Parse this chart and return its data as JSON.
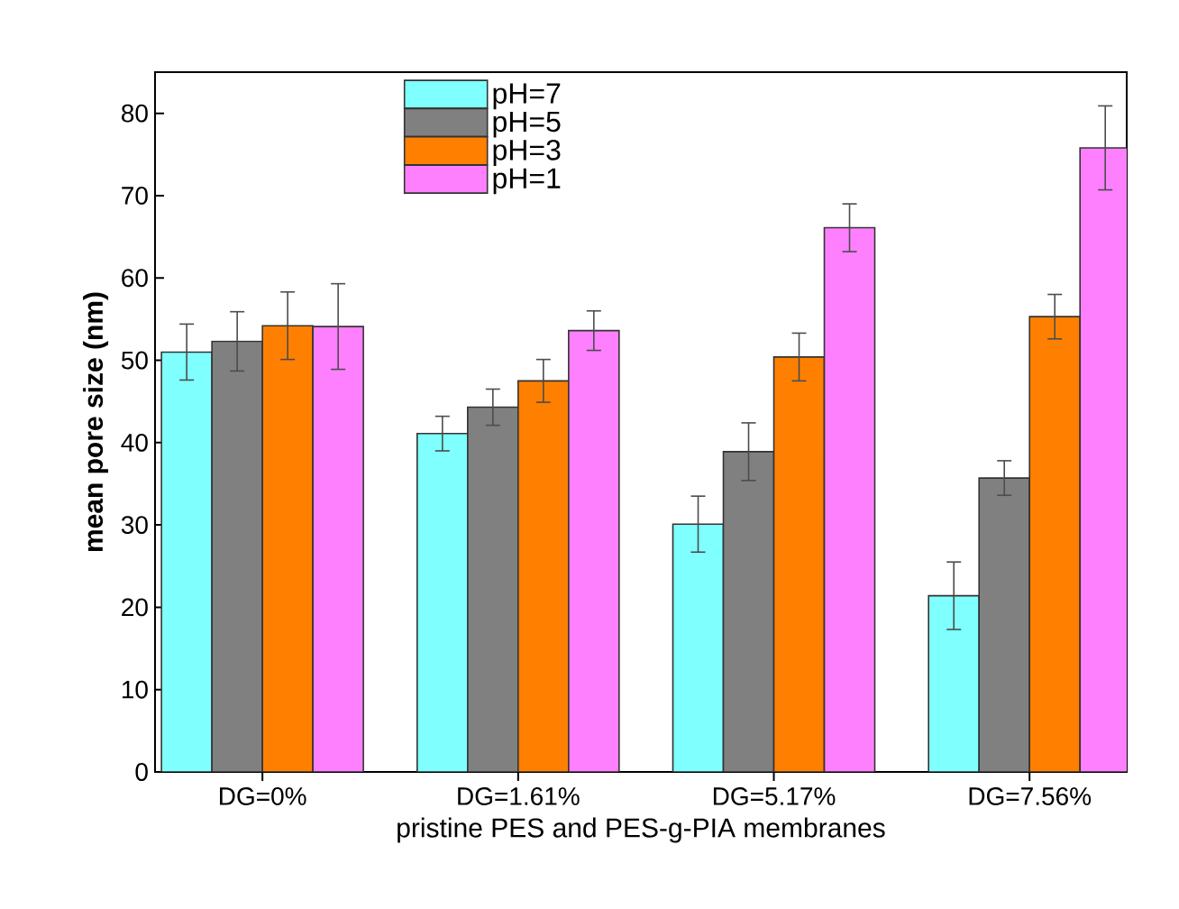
{
  "chart_data": {
    "type": "bar",
    "xlabel": "pristine PES and PES-g-PIA membranes",
    "ylabel": "mean pore size (nm)",
    "categories": [
      "DG=0%",
      "DG=1.61%",
      "DG=5.17%",
      "DG=7.56%"
    ],
    "series": [
      {
        "name": "pH=7",
        "color": "#80ffff",
        "values": [
          51.0,
          41.1,
          30.1,
          21.4
        ],
        "errors": [
          3.4,
          2.1,
          3.4,
          4.1
        ]
      },
      {
        "name": "pH=5",
        "color": "#808080",
        "values": [
          52.3,
          44.3,
          38.9,
          35.7
        ],
        "errors": [
          3.6,
          2.2,
          3.5,
          2.1
        ]
      },
      {
        "name": "pH=3",
        "color": "#ff8000",
        "values": [
          54.2,
          47.5,
          50.4,
          55.3
        ],
        "errors": [
          4.1,
          2.6,
          2.9,
          2.7
        ]
      },
      {
        "name": "pH=1",
        "color": "#ff80ff",
        "values": [
          54.1,
          53.6,
          66.1,
          75.8
        ],
        "errors": [
          5.2,
          2.4,
          2.9,
          5.1
        ]
      }
    ],
    "ylim": [
      0,
      85
    ],
    "yticks": [
      0,
      10,
      20,
      30,
      40,
      50,
      60,
      70,
      80
    ],
    "grid": false,
    "legend": "top"
  }
}
